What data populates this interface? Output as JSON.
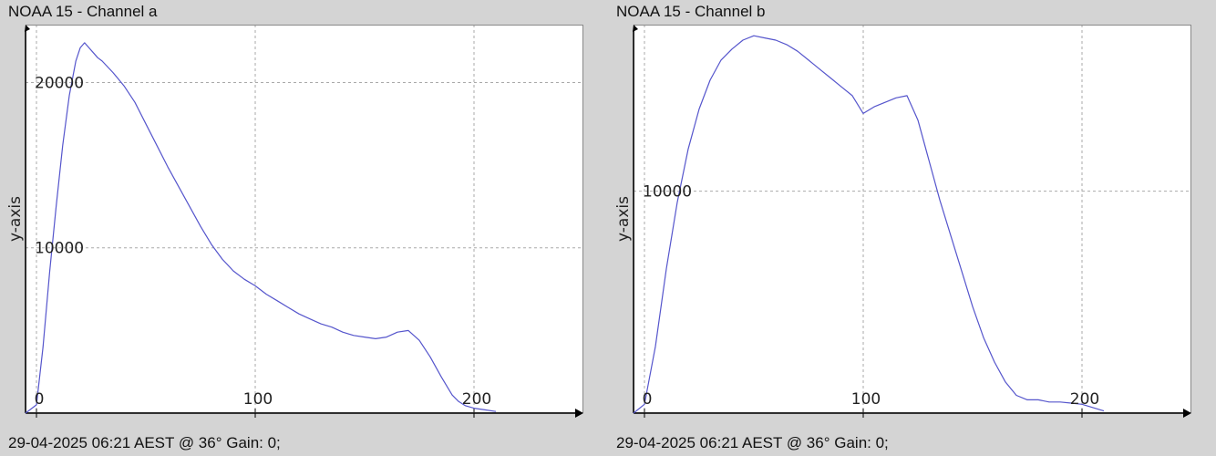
{
  "chart_data": [
    {
      "type": "line",
      "title": "NOAA 15 - Channel a",
      "ylabel": "y-axis",
      "xlabel": "",
      "footer": "29-04-2025 06:21 AEST @ 36° Gain: 0;",
      "xlim": [
        -5,
        250
      ],
      "ylim": [
        0,
        23500
      ],
      "x_ticks": [
        0,
        100,
        200
      ],
      "y_ticks": [
        10000,
        20000
      ],
      "grid": true,
      "line_color": "#5555cc",
      "series": [
        {
          "x": [
            -5,
            0,
            3,
            6,
            9,
            12,
            15,
            18,
            20,
            22,
            24,
            26,
            28,
            30,
            35,
            40,
            45,
            50,
            55,
            60,
            65,
            70,
            75,
            80,
            85,
            90,
            95,
            100,
            105,
            110,
            115,
            120,
            125,
            130,
            135,
            140,
            145,
            150,
            155,
            160,
            165,
            170,
            175,
            180,
            185,
            190,
            193,
            196,
            200,
            205,
            210
          ],
          "y": [
            0,
            500,
            4000,
            8500,
            12500,
            16200,
            19200,
            21300,
            22100,
            22400,
            22100,
            21800,
            21500,
            21300,
            20600,
            19800,
            18800,
            17500,
            16200,
            14900,
            13700,
            12500,
            11300,
            10200,
            9300,
            8600,
            8100,
            7700,
            7200,
            6800,
            6400,
            6000,
            5700,
            5400,
            5200,
            4900,
            4700,
            4600,
            4500,
            4600,
            4900,
            5000,
            4400,
            3400,
            2200,
            1100,
            700,
            450,
            300,
            200,
            100
          ]
        }
      ]
    },
    {
      "type": "line",
      "title": "NOAA 15 - Channel b",
      "ylabel": "y-axis",
      "xlabel": "",
      "footer": "29-04-2025 06:21 AEST @ 36° Gain: 0;",
      "xlim": [
        -5,
        250
      ],
      "ylim": [
        0,
        17500
      ],
      "x_ticks": [
        0,
        100,
        200
      ],
      "y_ticks": [
        10000
      ],
      "grid": true,
      "line_color": "#5555cc",
      "series": [
        {
          "x": [
            -5,
            0,
            5,
            10,
            15,
            20,
            25,
            30,
            35,
            40,
            45,
            50,
            55,
            60,
            65,
            70,
            75,
            80,
            85,
            90,
            95,
            100,
            105,
            110,
            115,
            120,
            125,
            130,
            135,
            140,
            145,
            150,
            155,
            160,
            165,
            170,
            175,
            180,
            185,
            190,
            195,
            200,
            205,
            210
          ],
          "y": [
            0,
            400,
            3000,
            6500,
            9500,
            11900,
            13700,
            15000,
            15900,
            16400,
            16800,
            17000,
            16900,
            16800,
            16600,
            16300,
            15900,
            15500,
            15100,
            14700,
            14300,
            13500,
            13800,
            14000,
            14200,
            14300,
            13200,
            11400,
            9600,
            8000,
            6400,
            4800,
            3400,
            2300,
            1400,
            800,
            600,
            600,
            500,
            500,
            450,
            400,
            250,
            100
          ]
        }
      ]
    }
  ]
}
